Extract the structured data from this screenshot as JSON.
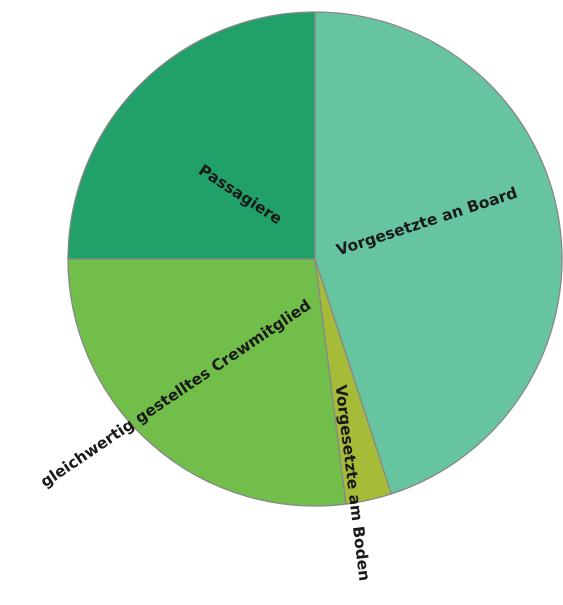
{
  "chart_data": {
    "type": "pie",
    "start_angle_deg": 0,
    "direction": "clockwise",
    "slices": [
      {
        "label": "Vorgesetzte an Board",
        "value": 45.0,
        "color": "#66c4a0"
      },
      {
        "label": "Vorgesetzte am Boden",
        "value": 3.0,
        "color": "#a6bc38"
      },
      {
        "label": "gleichwertig gestelltes Crewmitglied",
        "value": 27.0,
        "color": "#72be4a"
      },
      {
        "label": "Passagiere",
        "value": 25.0,
        "color": "#22a06a"
      }
    ],
    "border_color": "#888888"
  }
}
